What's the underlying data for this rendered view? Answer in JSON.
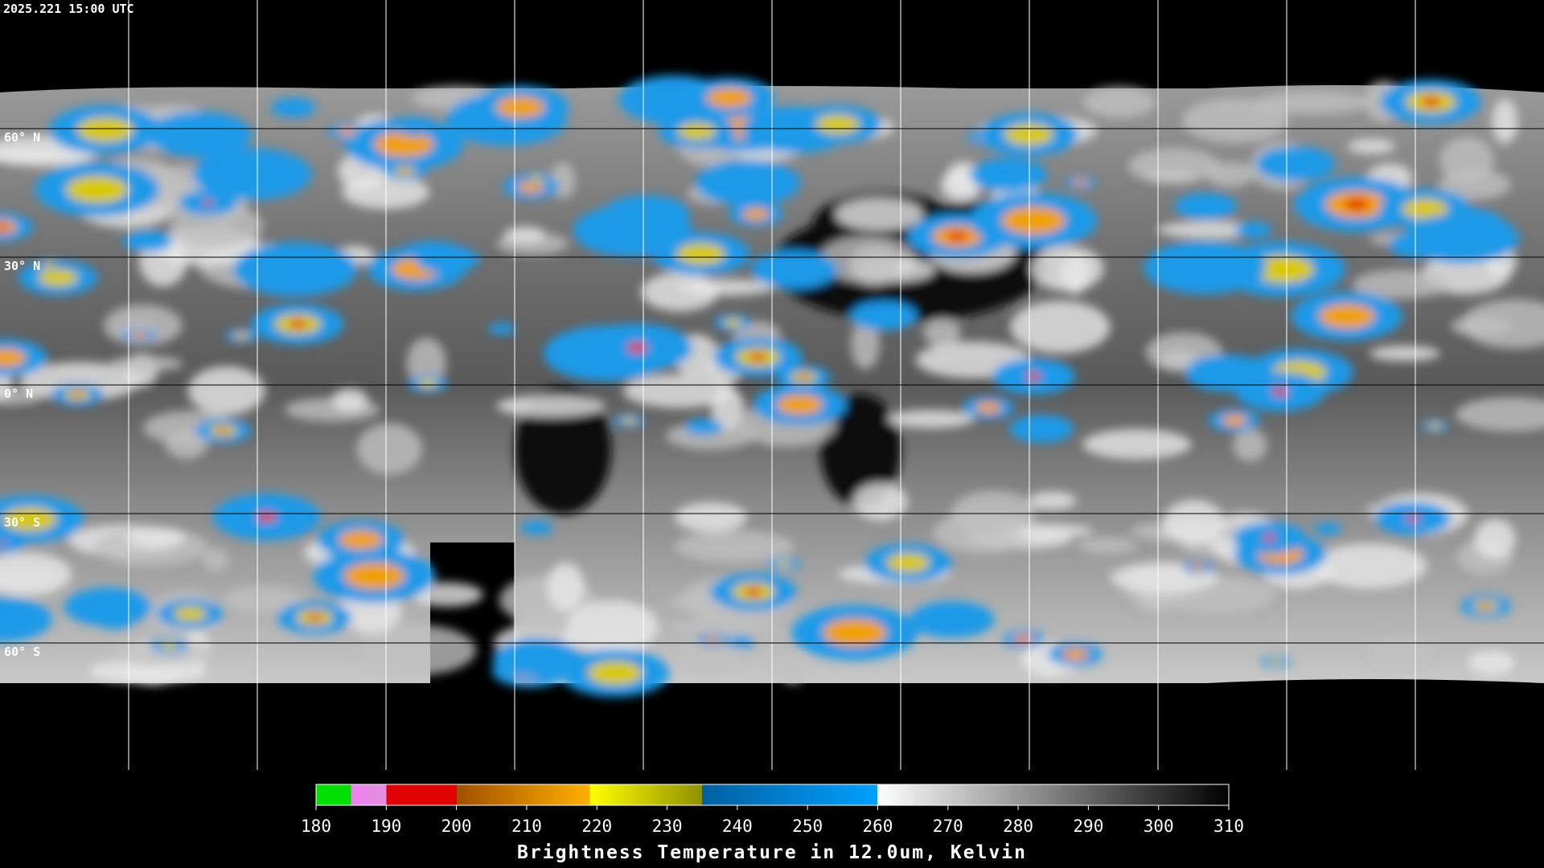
{
  "header": {
    "timestamp": "2025.221 15:00 UTC"
  },
  "map": {
    "lat_labels": [
      "60° N",
      "30° N",
      "0° N",
      "30° S",
      "60° S"
    ]
  },
  "colorbar": {
    "ticks": [
      180,
      190,
      200,
      210,
      220,
      230,
      240,
      250,
      260,
      270,
      280,
      290,
      300,
      310
    ],
    "title": "Brightness Temperature in 12.0um, Kelvin"
  }
}
